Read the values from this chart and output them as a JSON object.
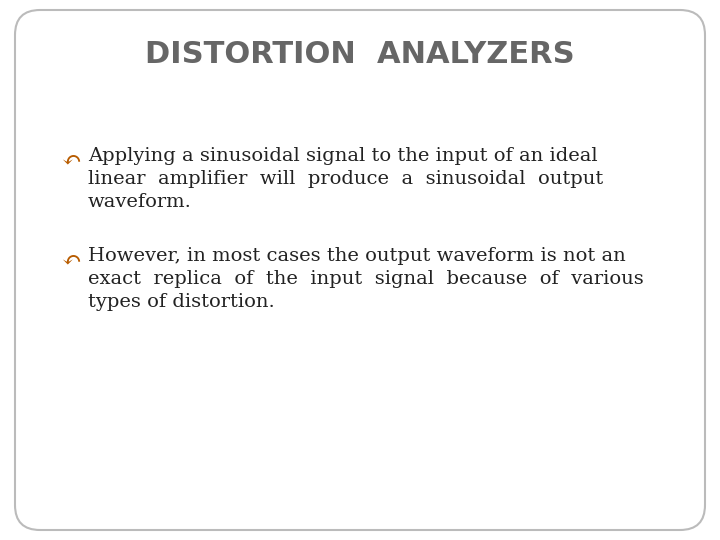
{
  "title": "DISTORTION  ANALYZERS",
  "title_color": "#666666",
  "title_fontsize": 22,
  "title_fontweight": "bold",
  "background_color": "#ffffff",
  "border_color": "#bbbbbb",
  "bullet_color": "#b85c00",
  "text_color": "#222222",
  "bullet_symbol": "↶↶",
  "bullet1_line1": "Applying a sinusoidal signal to the input of an ideal",
  "bullet1_line2": "linear  amplifier  will  produce  a  sinusoidal  output",
  "bullet1_line3": "waveform.",
  "bullet2_line1": "However, in most cases the output waveform is not an",
  "bullet2_line2": "exact  replica  of  the  input  signal  because  of  various",
  "bullet2_line3": "types of distortion.",
  "text_fontsize": 14,
  "font_family": "serif",
  "title_font_family": "sans-serif"
}
